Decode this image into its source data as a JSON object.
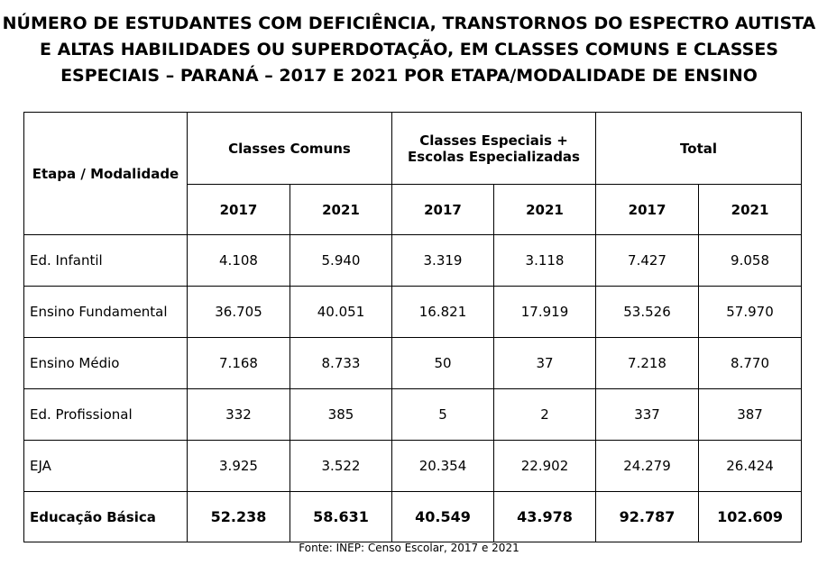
{
  "title": {
    "line1": "NÚMERO DE ESTUDANTES COM DEFICIÊNCIA, TRANSTORNOS DO ESPECTRO AUTISTA",
    "line2": "E ALTAS HABILIDADES OU SUPERDOTAÇÃO, EM CLASSES COMUNS E CLASSES",
    "line3": "ESPECIAIS – PARANÁ – 2017 E 2021 POR ETAPA/MODALIDADE DE ENSINO"
  },
  "table": {
    "col_header": "Etapa / Modalidade",
    "groups": [
      "Classes Comuns",
      "Classes Especiais +\nEscolas Especializadas",
      "Total"
    ],
    "groups_lines": [
      [
        "Classes Comuns"
      ],
      [
        "Classes Especiais +",
        "Escolas Especializadas"
      ],
      [
        "Total"
      ]
    ],
    "years": [
      "2017",
      "2021",
      "2017",
      "2021",
      "2017",
      "2021"
    ],
    "rows": [
      {
        "label": "Ed. Infantil",
        "values": [
          "4.108",
          "5.940",
          "3.319",
          "3.118",
          "7.427",
          "9.058"
        ]
      },
      {
        "label": "Ensino Fundamental",
        "values": [
          "36.705",
          "40.051",
          "16.821",
          "17.919",
          "53.526",
          "57.970"
        ]
      },
      {
        "label": "Ensino Médio",
        "values": [
          "7.168",
          "8.733",
          "50",
          "37",
          "7.218",
          "8.770"
        ]
      },
      {
        "label": "Ed. Profissional",
        "values": [
          "332",
          "385",
          "5",
          "2",
          "337",
          "387"
        ]
      },
      {
        "label": "EJA",
        "values": [
          "3.925",
          "3.522",
          "20.354",
          "22.902",
          "24.279",
          "26.424"
        ]
      }
    ],
    "total_row": {
      "label": "Educação Básica",
      "values": [
        "52.238",
        "58.631",
        "40.549",
        "43.978",
        "92.787",
        "102.609"
      ]
    }
  },
  "source": "Fonte: INEP: Censo Escolar, 2017 e 2021"
}
